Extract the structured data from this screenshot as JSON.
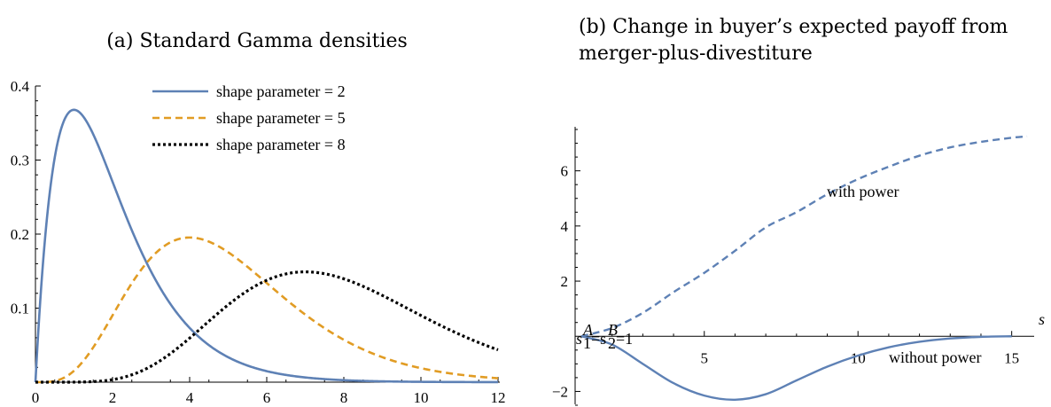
{
  "chart_data": [
    {
      "type": "line",
      "title": "(a) Standard Gamma densities",
      "xlim": [
        0,
        12
      ],
      "ylim": [
        0,
        0.4
      ],
      "x_ticks": [
        "0",
        "2",
        "4",
        "6",
        "8",
        "10",
        "12"
      ],
      "y_ticks": [
        "0.1",
        "0.2",
        "0.3",
        "0.4"
      ],
      "legend_position": "top-right",
      "series": [
        {
          "name": "shape parameter = 2",
          "shape": 2,
          "color": "#5e81b5",
          "style": "solid"
        },
        {
          "name": "shape parameter = 5",
          "shape": 5,
          "color": "#e19c24",
          "style": "dashed"
        },
        {
          "name": "shape parameter = 8",
          "shape": 8,
          "color": "#000000",
          "style": "dotted"
        }
      ]
    },
    {
      "type": "line",
      "title_line1": "(b)  Change  in  buyer’s  expected  payoff  from",
      "title_line2": "merger-plus-divestiture",
      "xlim": [
        1,
        15.5
      ],
      "ylim": [
        -2.5,
        7.5
      ],
      "xlabel": "s",
      "x_ticks": [
        "5",
        "10",
        "15"
      ],
      "y_ticks": [
        "−2",
        "2",
        "4",
        "6"
      ],
      "annotations": {
        "origin_label_a": "s",
        "origin_label_a_sub": "1",
        "origin_label_a_sup": "A",
        "origin_eq1": "=s",
        "origin_label_b_sub": "2",
        "origin_label_b_sup": "B",
        "origin_eq2": "=1",
        "with_power": "with power",
        "without_power": "without power"
      },
      "series": [
        {
          "name": "with power",
          "color": "#5e81b5",
          "style": "dashed",
          "x": [
            1,
            2,
            3,
            4,
            5,
            6,
            7,
            8,
            9,
            10,
            11,
            12,
            13,
            14,
            15,
            15.5
          ],
          "y": [
            0,
            0.3,
            0.85,
            1.6,
            2.3,
            3.1,
            3.95,
            4.5,
            5.15,
            5.7,
            6.15,
            6.55,
            6.85,
            7.05,
            7.2,
            7.25
          ]
        },
        {
          "name": "without power",
          "color": "#5e81b5",
          "style": "solid",
          "x": [
            1,
            2,
            3,
            4,
            5,
            6,
            7,
            8,
            9,
            10,
            11,
            12,
            13,
            14,
            15
          ],
          "y": [
            0,
            -0.3,
            -1.0,
            -1.7,
            -2.15,
            -2.3,
            -2.1,
            -1.6,
            -1.1,
            -0.7,
            -0.4,
            -0.2,
            -0.08,
            -0.02,
            0
          ]
        }
      ]
    }
  ]
}
